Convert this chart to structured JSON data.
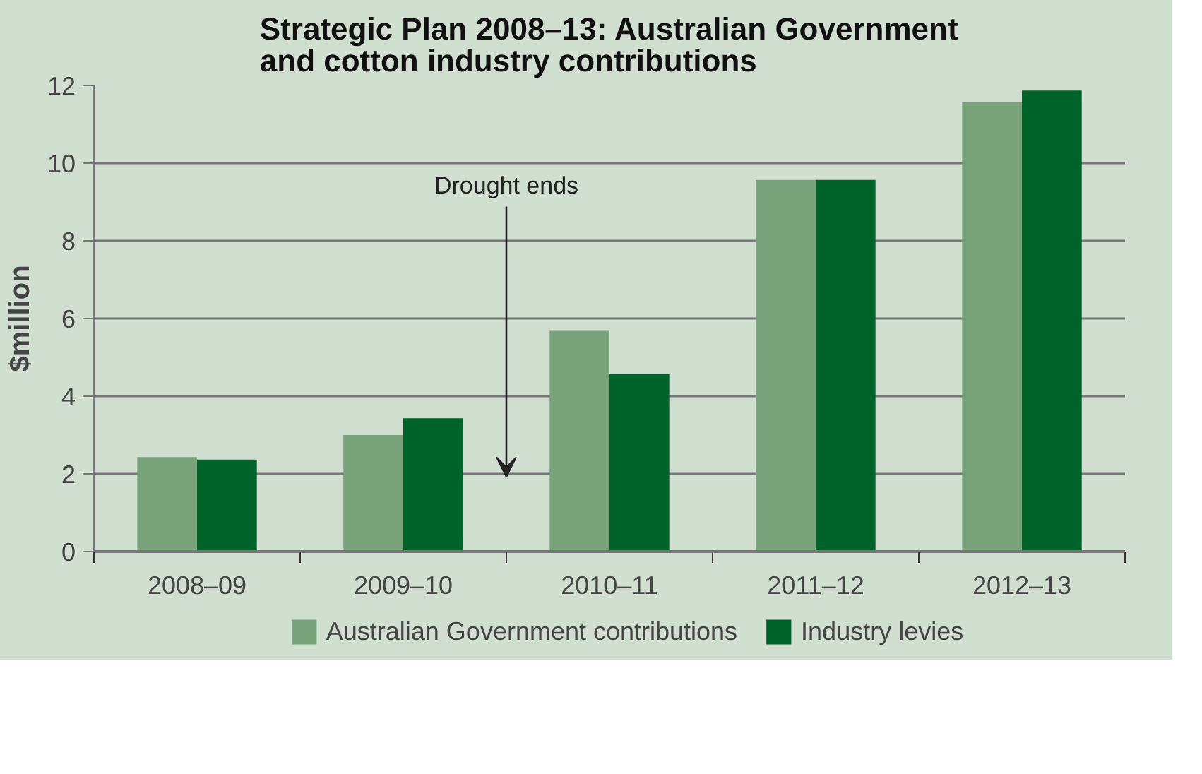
{
  "chart_data": {
    "type": "bar",
    "title": "Strategic Plan 2008–13: Australian Government and cotton industry contributions",
    "ylabel": "$million",
    "categories": [
      "2008–09",
      "2009–10",
      "2010–11",
      "2011–12",
      "2012–13"
    ],
    "series": [
      {
        "name": "Australian Government contributions",
        "color": "#78a37a",
        "values": [
          2.43,
          3.0,
          5.7,
          9.57,
          11.57
        ]
      },
      {
        "name": "Industry levies",
        "color": "#006329",
        "values": [
          2.37,
          3.43,
          4.57,
          9.57,
          11.87
        ]
      }
    ],
    "ylim": [
      0,
      12
    ],
    "yticks": [
      0,
      2,
      4,
      6,
      8,
      10,
      12
    ],
    "grid": "y",
    "legend": "bottom",
    "annotations": [
      "Drought ends"
    ]
  }
}
